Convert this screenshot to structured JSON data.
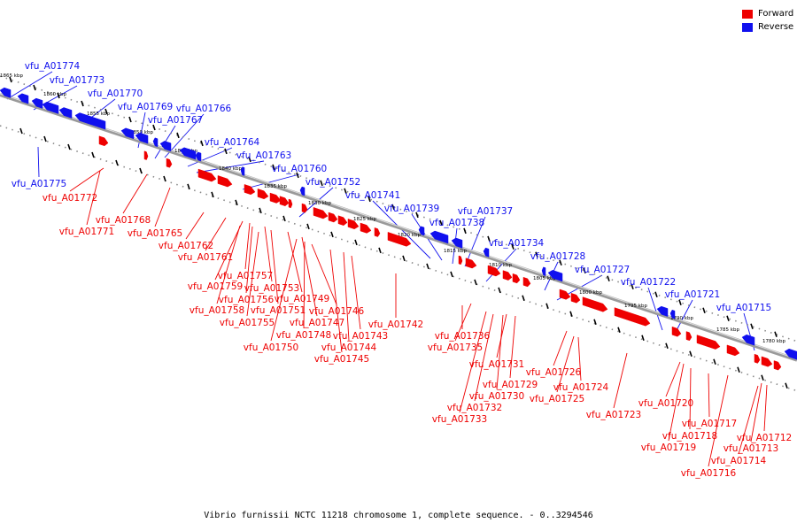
{
  "legend": {
    "forward_label": "Forward",
    "reverse_label": "Reverse",
    "forward_color": "#ee0000",
    "reverse_color": "#1010ee"
  },
  "caption": "Vibrio furnissii NCTC 11218 chromosome 1, complete sequence. - 0..3294546",
  "scale_ticks": [
    "1865 kbp",
    "1860 kbp",
    "1855 kbp",
    "1850 kbp",
    "1845 kbp",
    "1840 kbp",
    "1835 kbp",
    "1830 kbp",
    "1825 kbp",
    "1820 kbp",
    "1815 kbp",
    "1810 kbp",
    "1805 kbp",
    "1800 kbp",
    "1795 kbp",
    "1790 kbp",
    "1785 kbp",
    "1780 kbp"
  ],
  "reverse_genes": [
    "vfu_A01774",
    "vfu_A01773",
    "vfu_A01770",
    "vfu_A01769",
    "vfu_A01767",
    "vfu_A01766",
    "vfu_A01764",
    "vfu_A01763",
    "vfu_A01760",
    "vfu_A01752",
    "vfu_A01741",
    "vfu_A01739",
    "vfu_A01738",
    "vfu_A01737",
    "vfu_A01734",
    "vfu_A01728",
    "vfu_A01727",
    "vfu_A01722",
    "vfu_A01721",
    "vfu_A01715",
    "vfu_A01775"
  ],
  "forward_genes": [
    "vfu_A01772",
    "vfu_A01768",
    "vfu_A01771",
    "vfu_A01765",
    "vfu_A01762",
    "vfu_A01761",
    "vfu_A01757",
    "vfu_A01759",
    "vfu_A01753",
    "vfu_A01756",
    "vfu_A01749",
    "vfu_A01758",
    "vfu_A01751",
    "vfu_A01746",
    "vfu_A01755",
    "vfu_A01747",
    "vfu_A01742",
    "vfu_A01748",
    "vfu_A01743",
    "vfu_A01736",
    "vfu_A01750",
    "vfu_A01744",
    "vfu_A01735",
    "vfu_A01745",
    "vfu_A01731",
    "vfu_A01726",
    "vfu_A01729",
    "vfu_A01724",
    "vfu_A01730",
    "vfu_A01725",
    "vfu_A01732",
    "vfu_A01723",
    "vfu_A01733",
    "vfu_A01720",
    "vfu_A01717",
    "vfu_A01718",
    "vfu_A01712",
    "vfu_A01719",
    "vfu_A01713",
    "vfu_A01714",
    "vfu_A01716"
  ]
}
